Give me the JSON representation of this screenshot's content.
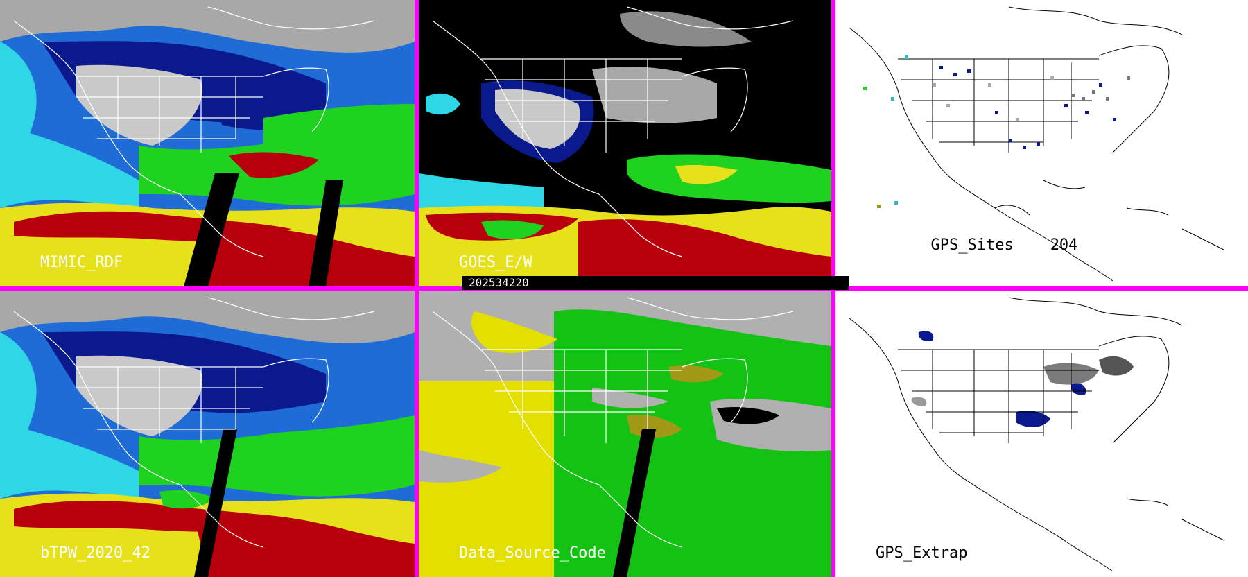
{
  "panels": [
    {
      "id": "mimic",
      "label": "MIMIC_RDF",
      "style": "tpw"
    },
    {
      "id": "goes",
      "label": "GOES_E/W",
      "style": "goes"
    },
    {
      "id": "gps-sites",
      "label": "GPS_Sites",
      "count": "204",
      "style": "sites"
    },
    {
      "id": "btpw",
      "label": "bTPW_2020_42",
      "style": "tpw"
    },
    {
      "id": "source",
      "label": "Data_Source_Code",
      "style": "source"
    },
    {
      "id": "gps-extrap",
      "label": "GPS_Extrap",
      "style": "extrap"
    }
  ],
  "timestamp": "202534220",
  "colors": {
    "divider": "#ff00ff",
    "tpw_dry": "#9a9a9a",
    "tpw_navy": "#0a1a8c",
    "tpw_blue": "#1f6cd6",
    "tpw_cyan": "#2fd6e6",
    "tpw_green": "#1fd21f",
    "tpw_yellow": "#e6e11a",
    "tpw_red": "#b8000c",
    "source_gray": "#b0b0b0",
    "source_yellow": "#e3e000",
    "source_green": "#14c214",
    "source_olive": "#a29a17",
    "map_lines_dark": "#ffffff",
    "map_lines_light": "#000000"
  }
}
